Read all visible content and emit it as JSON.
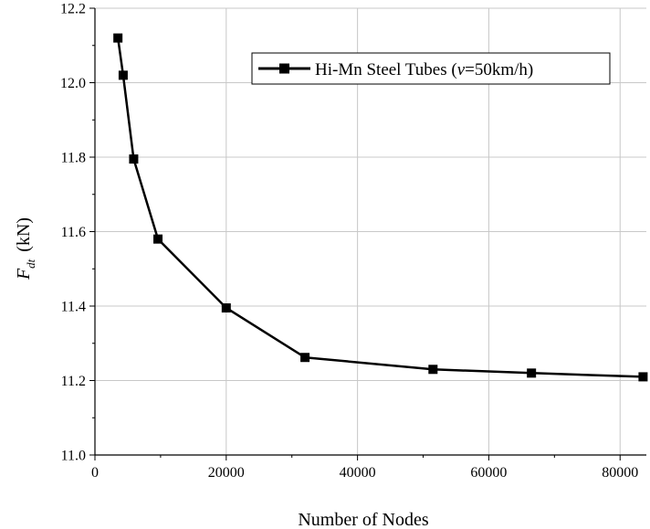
{
  "chart_data": {
    "type": "line",
    "xlabel": "Number of Nodes",
    "ylabel_main": "F",
    "ylabel_sub": "dt",
    "ylabel_unit": "(kN)",
    "xlim": [
      0,
      84000
    ],
    "ylim": [
      11.0,
      12.2
    ],
    "xticks": [
      "0",
      "20000",
      "40000",
      "60000",
      "80000"
    ],
    "xtick_values": [
      0,
      20000,
      40000,
      60000,
      80000
    ],
    "yticks": [
      "11.0",
      "11.2",
      "11.4",
      "11.6",
      "11.8",
      "12.0",
      "12.2"
    ],
    "ytick_values": [
      11.0,
      11.2,
      11.4,
      11.6,
      11.8,
      12.0,
      12.2
    ],
    "grid": true,
    "legend_position": "top-right",
    "series": [
      {
        "legend_prefix": "Hi-Mn Steel Tubes (",
        "legend_var": "v",
        "legend_suffix": "=50km/h)",
        "color": "#000000",
        "marker": "square",
        "x": [
          3500,
          4300,
          5900,
          9600,
          20000,
          32000,
          51500,
          66500,
          83500
        ],
        "y": [
          12.12,
          12.02,
          11.795,
          11.58,
          11.395,
          11.262,
          11.23,
          11.22,
          11.21
        ]
      }
    ]
  }
}
